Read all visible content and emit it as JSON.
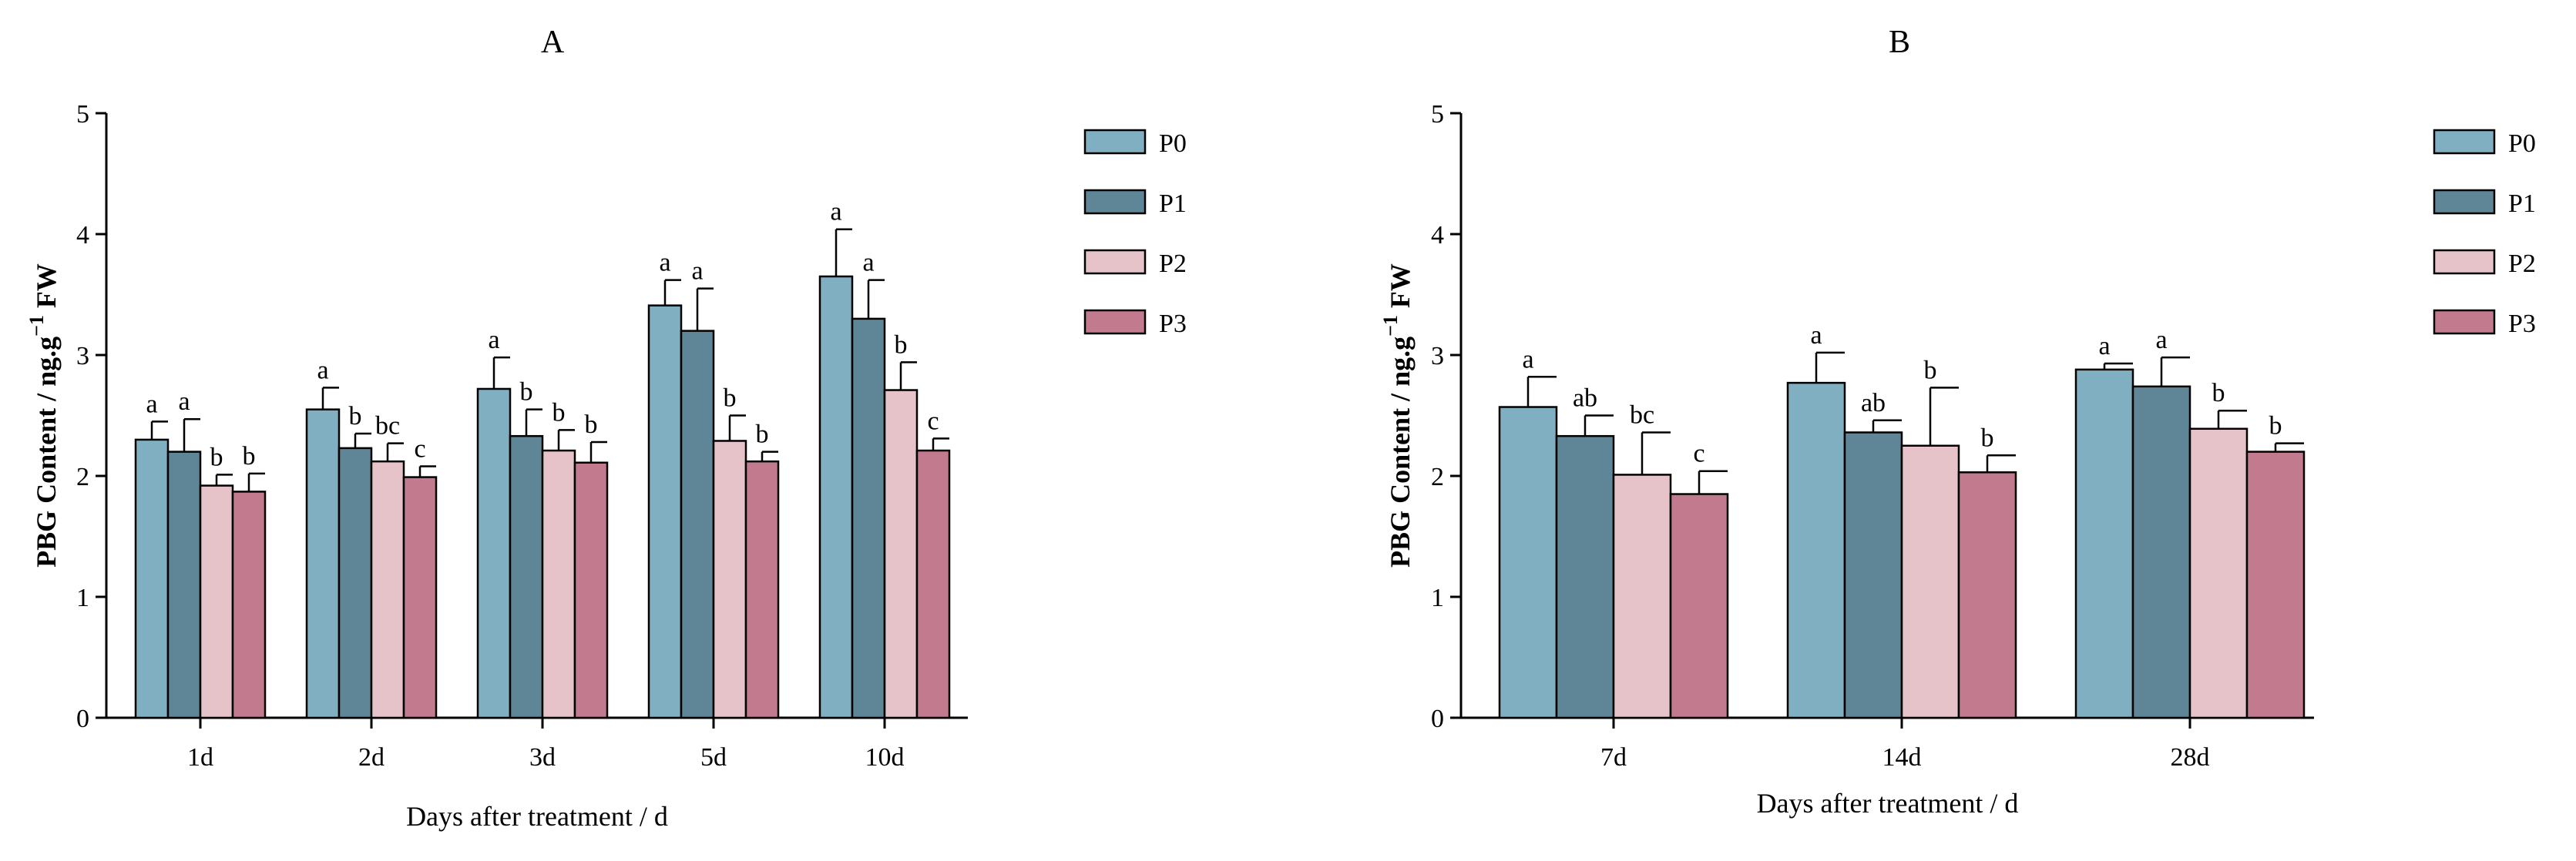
{
  "chart_data": [
    {
      "type": "bar",
      "title": "A",
      "xlabel": "Days after treatment / d",
      "ylabel": "PBG Content / ng.g",
      "ylabel_sup": "−1",
      "ylabel_suffix": " FW",
      "ylim": [
        0,
        5
      ],
      "yticks": [
        "0",
        "1",
        "2",
        "3",
        "4",
        "5"
      ],
      "categories": [
        "1d",
        "2d",
        "3d",
        "5d",
        "10d"
      ],
      "series": [
        {
          "name": "P0",
          "color": "#7fafc0",
          "values": [
            2.3,
            2.55,
            2.72,
            3.41,
            3.65
          ],
          "errors": [
            0.15,
            0.18,
            0.26,
            0.21,
            0.39
          ],
          "labels": [
            "a",
            "a",
            "a",
            "a",
            "a"
          ]
        },
        {
          "name": "P1",
          "color": "#5f8696",
          "values": [
            2.2,
            2.23,
            2.33,
            3.2,
            3.3
          ],
          "errors": [
            0.27,
            0.12,
            0.22,
            0.35,
            0.32
          ],
          "labels": [
            "a",
            "b",
            "b",
            "a",
            "a"
          ]
        },
        {
          "name": "P2",
          "color": "#e6c3c9",
          "values": [
            1.92,
            2.12,
            2.21,
            2.29,
            2.71
          ],
          "errors": [
            0.09,
            0.15,
            0.17,
            0.21,
            0.23
          ],
          "labels": [
            "b",
            "bc",
            "b",
            "b",
            "b"
          ]
        },
        {
          "name": "P3",
          "color": "#c27a8f",
          "values": [
            1.87,
            1.99,
            2.11,
            2.12,
            2.21
          ],
          "errors": [
            0.15,
            0.09,
            0.17,
            0.08,
            0.1
          ],
          "labels": [
            "b",
            "c",
            "b",
            "b",
            "c"
          ]
        }
      ],
      "legend": "right"
    },
    {
      "type": "bar",
      "title": "B",
      "xlabel": "Days after treatment / d",
      "ylabel": "PBG Content / ng.g",
      "ylabel_sup": "−1",
      "ylabel_suffix": " FW",
      "ylim": [
        0,
        5
      ],
      "yticks": [
        "0",
        "1",
        "2",
        "3",
        "4",
        "5"
      ],
      "categories": [
        "7d",
        "14d",
        "28d"
      ],
      "series": [
        {
          "name": "P0",
          "color": "#7fafc0",
          "values": [
            2.57,
            2.77,
            2.88
          ],
          "errors": [
            0.25,
            0.25,
            0.05
          ],
          "labels": [
            "a",
            "a",
            "a"
          ]
        },
        {
          "name": "P1",
          "color": "#5f8696",
          "values": [
            2.33,
            2.36,
            2.74
          ],
          "errors": [
            0.17,
            0.1,
            0.24
          ],
          "labels": [
            "ab",
            "ab",
            "a"
          ]
        },
        {
          "name": "P2",
          "color": "#e6c3c9",
          "values": [
            2.01,
            2.25,
            2.39
          ],
          "errors": [
            0.35,
            0.48,
            0.15
          ],
          "labels": [
            "bc",
            "b",
            "b"
          ]
        },
        {
          "name": "P3",
          "color": "#c27a8f",
          "values": [
            1.85,
            2.03,
            2.2
          ],
          "errors": [
            0.19,
            0.14,
            0.07
          ],
          "labels": [
            "c",
            "b",
            "b"
          ]
        }
      ],
      "legend": "right"
    }
  ]
}
